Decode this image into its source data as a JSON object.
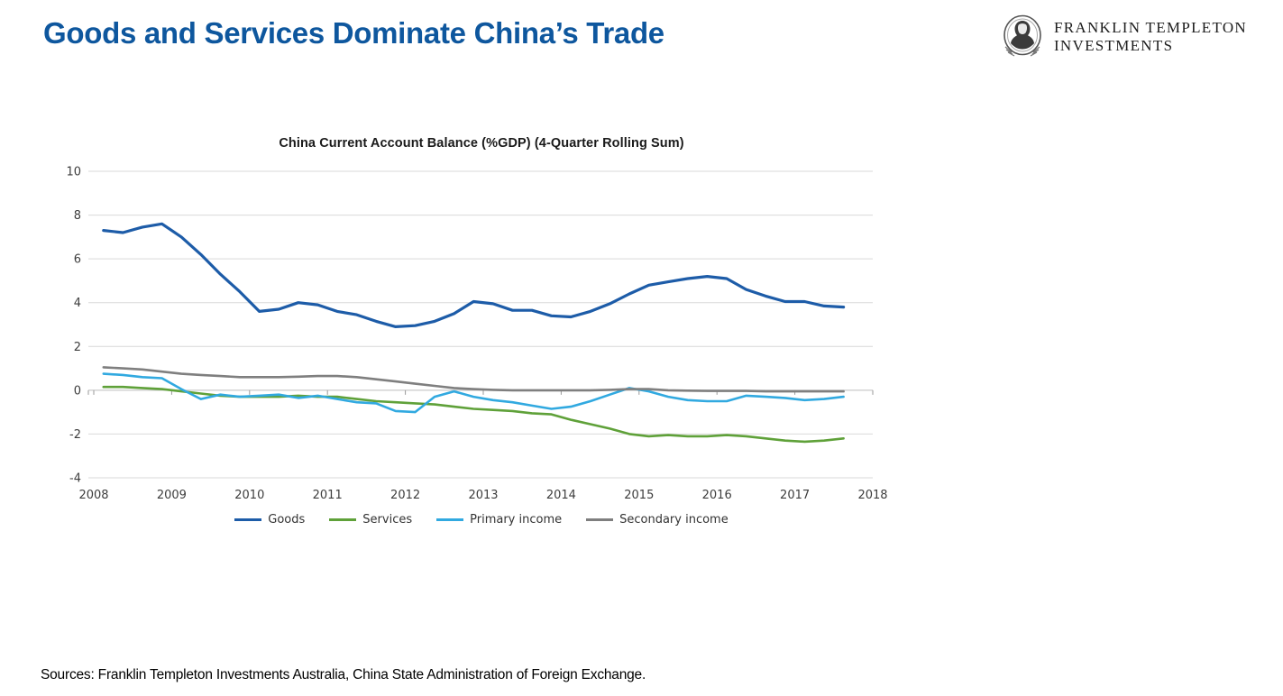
{
  "page_title": "Goods and Services Dominate China’s Trade",
  "logo": {
    "line1": "FRANKLIN TEMPLETON",
    "line2": "INVESTMENTS"
  },
  "footer": {
    "sources": "Sources: Franklin Templeton Investments Australia, China State Administration of Foreign Exchange."
  },
  "colors": {
    "heading_blue": "#0E579E",
    "goods_line": "#1D5CA8",
    "services_line": "#5FA139",
    "primary_income_line": "#31A9E0",
    "secondary_income_line": "#7F7F7F",
    "gridline": "#D9D9D9",
    "axis_line": "#BDBDBD",
    "tick": "#999999",
    "axis_text": "#3d3d3d"
  },
  "chart_data": {
    "type": "line",
    "title": "China Current Account Balance (%GDP) (4-Quarter Rolling Sum)",
    "xlabel": "",
    "ylabel": "",
    "ylim": [
      -4,
      10
    ],
    "xlim": [
      2008,
      2018
    ],
    "y_ticks": [
      10,
      8,
      6,
      4,
      2,
      0,
      -2,
      -4
    ],
    "x_tick_labels": [
      "2008",
      "2009",
      "2010",
      "2011",
      "2012",
      "2013",
      "2014",
      "2015",
      "2016",
      "2017",
      "2018"
    ],
    "x_tick_values": [
      2008,
      2009,
      2010,
      2011,
      2012,
      2013,
      2014,
      2015,
      2016,
      2017,
      2018
    ],
    "grid": "horizontal",
    "legend_position": "bottom",
    "x_start": 2008.125,
    "x_step": 0.25,
    "frequency": "quarterly",
    "series": [
      {
        "name": "Goods",
        "color": "#1D5CA8",
        "width": 3.2,
        "values": [
          7.3,
          7.2,
          7.45,
          7.6,
          7.0,
          6.2,
          5.3,
          4.5,
          3.6,
          3.7,
          4.0,
          3.9,
          3.6,
          3.45,
          3.15,
          2.9,
          2.95,
          3.15,
          3.5,
          4.05,
          3.95,
          3.65,
          3.65,
          3.4,
          3.35,
          3.6,
          3.95,
          4.4,
          4.8,
          4.95,
          5.1,
          5.2,
          5.1,
          4.6,
          4.3,
          4.05,
          4.05,
          3.85,
          3.8
        ]
      },
      {
        "name": "Services",
        "color": "#5FA139",
        "width": 2.6,
        "values": [
          0.15,
          0.15,
          0.1,
          0.05,
          -0.05,
          -0.15,
          -0.25,
          -0.3,
          -0.3,
          -0.3,
          -0.25,
          -0.3,
          -0.3,
          -0.4,
          -0.5,
          -0.55,
          -0.6,
          -0.65,
          -0.75,
          -0.85,
          -0.9,
          -0.95,
          -1.05,
          -1.1,
          -1.35,
          -1.55,
          -1.75,
          -2.0,
          -2.1,
          -2.05,
          -2.1,
          -2.1,
          -2.05,
          -2.1,
          -2.2,
          -2.3,
          -2.35,
          -2.3,
          -2.2
        ]
      },
      {
        "name": "Primary income",
        "color": "#31A9E0",
        "width": 2.6,
        "values": [
          0.75,
          0.7,
          0.6,
          0.55,
          0.05,
          -0.4,
          -0.2,
          -0.3,
          -0.25,
          -0.2,
          -0.35,
          -0.25,
          -0.4,
          -0.55,
          -0.6,
          -0.95,
          -1.0,
          -0.3,
          -0.05,
          -0.3,
          -0.45,
          -0.55,
          -0.7,
          -0.85,
          -0.75,
          -0.5,
          -0.2,
          0.1,
          -0.05,
          -0.3,
          -0.45,
          -0.5,
          -0.5,
          -0.25,
          -0.3,
          -0.35,
          -0.45,
          -0.4,
          -0.3
        ]
      },
      {
        "name": "Secondary income",
        "color": "#7F7F7F",
        "width": 2.6,
        "values": [
          1.05,
          1.0,
          0.95,
          0.85,
          0.75,
          0.7,
          0.65,
          0.6,
          0.6,
          0.6,
          0.62,
          0.65,
          0.65,
          0.6,
          0.5,
          0.4,
          0.3,
          0.2,
          0.1,
          0.05,
          0.02,
          0.0,
          0.0,
          0.0,
          0.0,
          0.0,
          0.02,
          0.05,
          0.05,
          0.0,
          -0.02,
          -0.03,
          -0.03,
          -0.03,
          -0.05,
          -0.05,
          -0.05,
          -0.05,
          -0.05
        ]
      }
    ]
  }
}
